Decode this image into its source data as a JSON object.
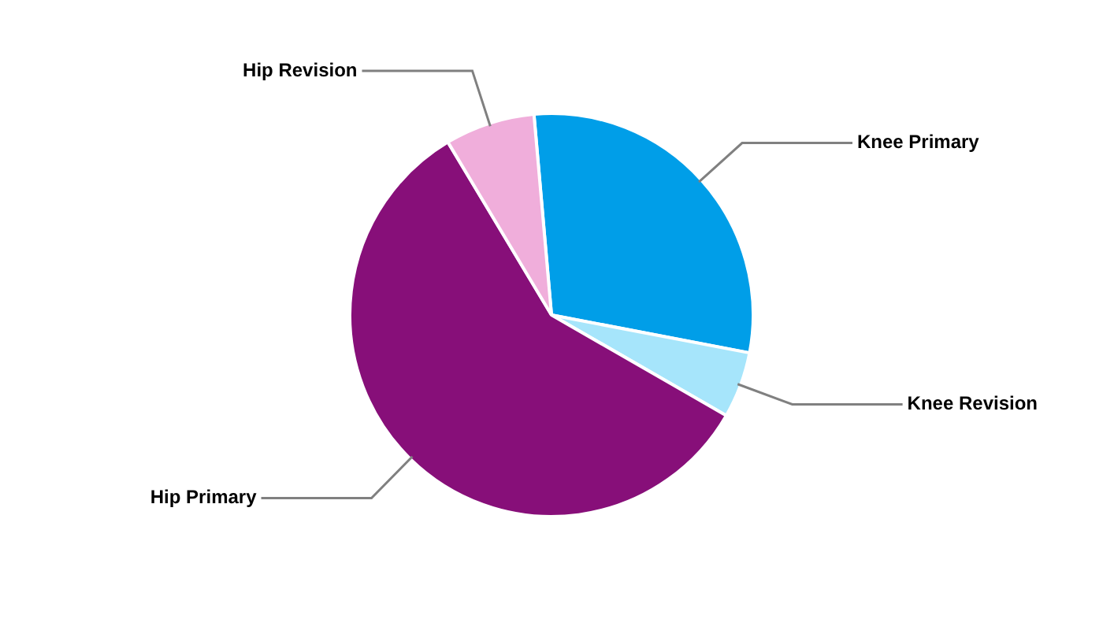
{
  "chart_data": {
    "type": "pie",
    "categories": [
      "Knee Primary",
      "Knee Revision",
      "Hip Primary",
      "Hip Revision"
    ],
    "values": [
      29.4,
      5.3,
      58.1,
      7.2
    ],
    "colors": [
      "#009ee8",
      "#a6e5fb",
      "#870f79",
      "#f0aedb"
    ],
    "legend": false
  }
}
